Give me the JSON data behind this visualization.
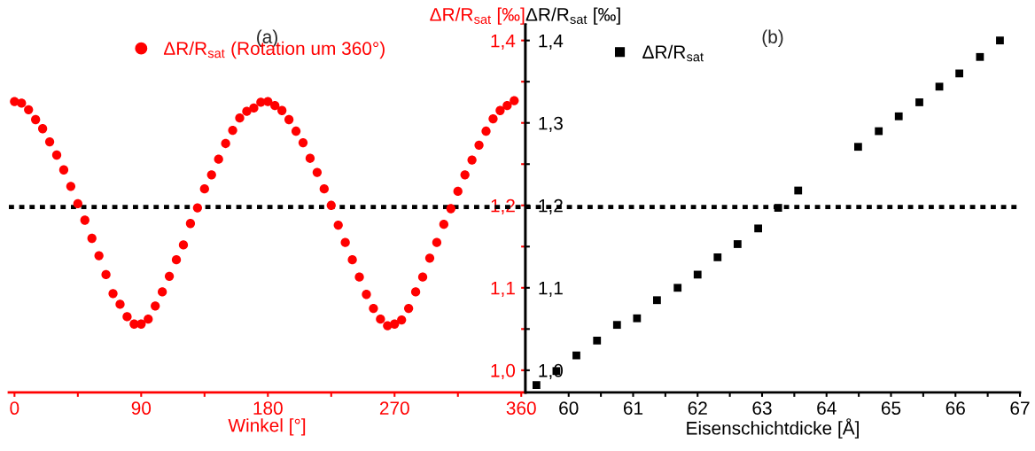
{
  "chart_data": [
    {
      "type": "scatter",
      "title": "(a)",
      "xlabel": "Winkel [°]",
      "ylabel": "ΔR/R$_{sat}$ [‰]",
      "marker": "circle",
      "legend": "top",
      "grid": false,
      "x": [
        0,
        5,
        10,
        15,
        20,
        25,
        30,
        35,
        40,
        45,
        50,
        55,
        60,
        65,
        70,
        75,
        80,
        85,
        90,
        95,
        100,
        105,
        110,
        115,
        120,
        125,
        130,
        135,
        140,
        145,
        150,
        155,
        160,
        165,
        170,
        175,
        180,
        185,
        190,
        195,
        200,
        205,
        210,
        215,
        220,
        225,
        230,
        235,
        240,
        245,
        250,
        255,
        260,
        265,
        270,
        275,
        280,
        285,
        290,
        295,
        300,
        305,
        310,
        315,
        320,
        325,
        330,
        335,
        340,
        345,
        350,
        355
      ],
      "series": [
        {
          "name": "ΔR/R$_{sat}$ (Rotation um 360°)",
          "color": "#ff0000",
          "values": [
            1.326,
            1.324,
            1.316,
            1.304,
            1.293,
            1.277,
            1.261,
            1.243,
            1.223,
            1.202,
            1.182,
            1.16,
            1.139,
            1.116,
            1.093,
            1.08,
            1.065,
            1.056,
            1.056,
            1.062,
            1.078,
            1.095,
            1.114,
            1.134,
            1.152,
            1.178,
            1.197,
            1.22,
            1.237,
            1.256,
            1.275,
            1.291,
            1.306,
            1.314,
            1.318,
            1.325,
            1.326,
            1.321,
            1.315,
            1.304,
            1.29,
            1.276,
            1.257,
            1.24,
            1.22,
            1.2,
            1.176,
            1.155,
            1.134,
            1.113,
            1.092,
            1.075,
            1.062,
            1.054,
            1.056,
            1.061,
            1.075,
            1.095,
            1.113,
            1.136,
            1.155,
            1.177,
            1.196,
            1.217,
            1.237,
            1.255,
            1.273,
            1.29,
            1.305,
            1.315,
            1.321,
            1.327
          ]
        }
      ],
      "xlim": [
        -4,
        363
      ],
      "xticks": [
        0,
        {
          "value": 45,
          "label": null
        },
        90,
        {
          "value": 135,
          "label": null
        },
        180,
        {
          "value": 225,
          "label": null
        },
        270,
        {
          "value": 315,
          "label": null
        },
        360
      ],
      "ylim": [
        0.973,
        1.419
      ],
      "yticks": [
        {
          "value": 1.0,
          "label": "1,0"
        },
        {
          "value": 1.05,
          "label": null
        },
        {
          "value": 1.1,
          "label": "1,1"
        },
        {
          "value": 1.15,
          "label": null
        },
        {
          "value": 1.2,
          "label": "1,2"
        },
        {
          "value": 1.25,
          "label": null
        },
        {
          "value": 1.3,
          "label": null
        },
        {
          "value": 1.35,
          "label": null
        },
        {
          "value": 1.4,
          "label": "1,4"
        }
      ],
      "ref_lines": [
        {
          "axis": "y",
          "value": 1.198,
          "color": "#000000",
          "line_style": "dotted"
        }
      ]
    },
    {
      "type": "scatter",
      "title": "(b)",
      "xlabel": "Eisenschichtdicke [Å]",
      "ylabel": "ΔR/R$_{sat}$ [‰]",
      "marker": "square",
      "legend": "top left",
      "grid": false,
      "x": [
        59.5,
        59.81,
        60.12,
        60.44,
        60.75,
        61.06,
        61.37,
        61.69,
        62.0,
        62.31,
        62.62,
        62.94,
        63.25,
        63.56,
        64.49,
        64.81,
        65.12,
        65.44,
        65.75,
        66.06,
        66.38,
        66.69
      ],
      "series": [
        {
          "name": "ΔR/R$_{sat}$",
          "color": "#000000",
          "values": [
            0.982,
            0.999,
            1.018,
            1.036,
            1.055,
            1.063,
            1.085,
            1.1,
            1.116,
            1.137,
            1.153,
            1.172,
            1.197,
            1.218,
            1.271,
            1.29,
            1.308,
            1.325,
            1.344,
            1.36,
            1.38,
            1.4
          ]
        }
      ],
      "xlim": [
        59.33,
        67
      ],
      "xticks": [
        60,
        {
          "value": 60.5,
          "label": null
        },
        61,
        {
          "value": 61.5,
          "label": null
        },
        62,
        {
          "value": 62.5,
          "label": null
        },
        63,
        {
          "value": 63.5,
          "label": null
        },
        64,
        {
          "value": 64.5,
          "label": null
        },
        65,
        {
          "value": 65.5,
          "label": null
        },
        66,
        {
          "value": 66.5,
          "label": null
        },
        67
      ],
      "ylim": [
        0.973,
        1.419
      ],
      "yticks": [
        {
          "value": 1.0,
          "label": "1,0"
        },
        {
          "value": 1.05,
          "label": null
        },
        {
          "value": 1.1,
          "label": "1,1"
        },
        {
          "value": 1.15,
          "label": null
        },
        {
          "value": 1.2,
          "label": "1,2"
        },
        {
          "value": 1.25,
          "label": null
        },
        {
          "value": 1.3,
          "label": "1,3"
        },
        {
          "value": 1.35,
          "label": null
        },
        {
          "value": 1.4,
          "label": "1,4"
        }
      ],
      "ref_lines": [
        {
          "axis": "y",
          "value": 1.198,
          "color": "#000000",
          "line_style": "dotted"
        }
      ]
    }
  ]
}
